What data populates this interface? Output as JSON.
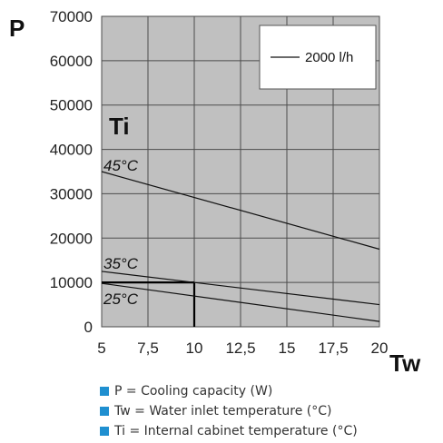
{
  "chart_data": {
    "type": "line",
    "y_axis_letter": "P",
    "x_axis_letter": "Tw",
    "group_label": "Ti",
    "x_ticks": [
      "5",
      "7,5",
      "10",
      "12,5",
      "15",
      "17,5",
      "20"
    ],
    "y_ticks": [
      "0",
      "10000",
      "20000",
      "30000",
      "40000",
      "50000",
      "60000",
      "70000"
    ],
    "xlim": [
      5,
      20
    ],
    "ylim": [
      0,
      70000
    ],
    "grid": true,
    "legend": {
      "label": "2000 l/h",
      "placement": "top-right"
    },
    "series": [
      {
        "curve_label": "45°C",
        "x": [
          5,
          20
        ],
        "y": [
          35000,
          17500
        ]
      },
      {
        "curve_label": "35°C",
        "x": [
          5,
          20
        ],
        "y": [
          12500,
          5000
        ]
      },
      {
        "curve_label": "25°C",
        "x": [
          5,
          20
        ],
        "y": [
          9800,
          1200
        ]
      }
    ],
    "marker": {
      "x": 10,
      "y": 10000
    },
    "colors": {
      "plot_bg": "#c0c0c0",
      "grid": "#4d4d4d",
      "line": "#111111"
    }
  },
  "notes": [
    {
      "text": "P = Cooling capacity (W)"
    },
    {
      "text": "Tw = Water inlet temperature (°C)"
    },
    {
      "text": "Ti = Internal cabinet temperature (°C)"
    }
  ],
  "bullet_color": "#1f8fd0"
}
